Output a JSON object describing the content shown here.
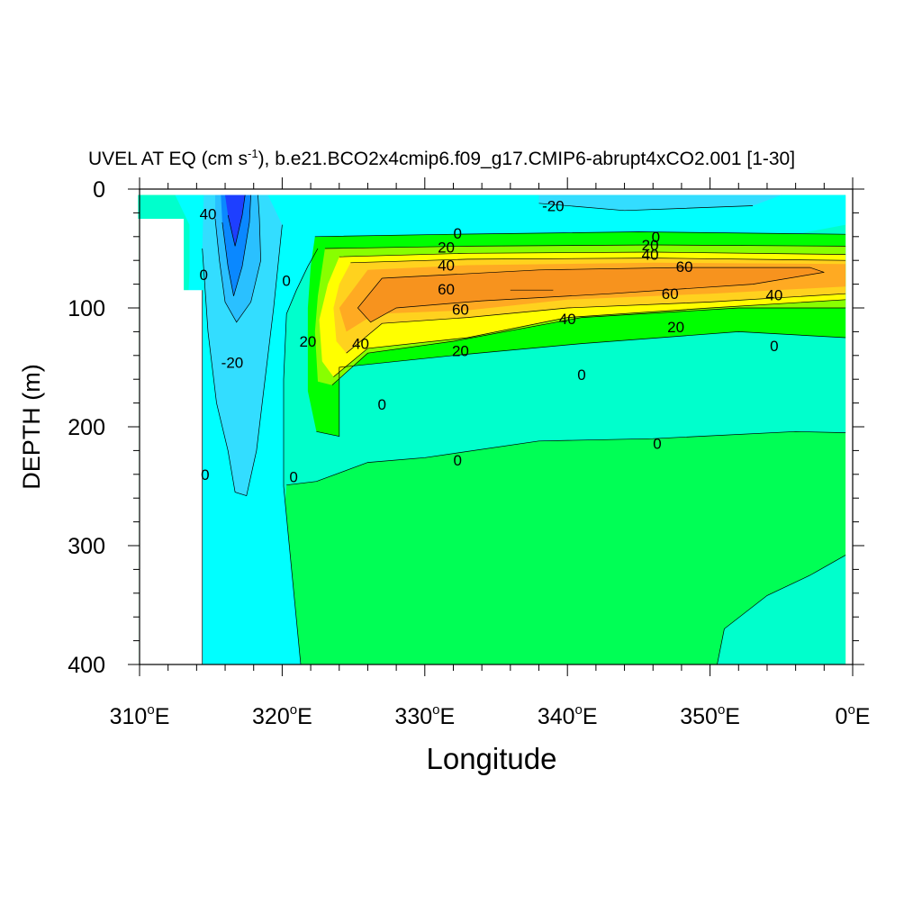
{
  "chart_data": {
    "type": "heatmap",
    "title": {
      "variable": "UVEL AT EQ",
      "units_prefix": "(cm s",
      "units_exponent": "-1",
      "units_suffix": "),",
      "case": "b.e21.BCO2x4cmip6.f09_g17.CMIP6-abrupt4xCO2.001 [1-30]"
    },
    "xlabel": "Longitude",
    "ylabel": "DEPTH (m)",
    "xlim": [
      310,
      360
    ],
    "ylim": [
      0,
      400
    ],
    "x_ticks": [
      {
        "value": 310,
        "num": "310",
        "suffix": "E"
      },
      {
        "value": 320,
        "num": "320",
        "suffix": "E"
      },
      {
        "value": 330,
        "num": "330",
        "suffix": "E"
      },
      {
        "value": 340,
        "num": "340",
        "suffix": "E"
      },
      {
        "value": 350,
        "num": "350",
        "suffix": "E"
      },
      {
        "value": 360,
        "num": "0",
        "suffix": "E"
      }
    ],
    "y_ticks": [
      {
        "value": 0,
        "label": "0"
      },
      {
        "value": 100,
        "label": "100"
      },
      {
        "value": 200,
        "label": "200"
      },
      {
        "value": 300,
        "label": "300"
      },
      {
        "value": 400,
        "label": "400"
      }
    ],
    "colors": {
      "cyan_light": "#00ffff",
      "mint": "#00ffcc",
      "aqua": "#33ddff",
      "sky": "#2ac0ff",
      "blue_mid": "#0a88ff",
      "blue_dark": "#1e3fff",
      "green": "#00ff55",
      "lime": "#00ff00",
      "yellow_green": "#88ff00",
      "yellow": "#ffff00",
      "gold": "#ffd21e",
      "orange_light": "#ffaa22",
      "orange": "#f7931e"
    },
    "contour_labels": [
      {
        "text": "-20",
        "x": 339.0,
        "y": 14
      },
      {
        "text": "40",
        "x": 314.8,
        "y": 21
      },
      {
        "text": "0",
        "x": 314.5,
        "y": 72
      },
      {
        "text": "0",
        "x": 320.3,
        "y": 77
      },
      {
        "text": "20",
        "x": 321.8,
        "y": 128
      },
      {
        "text": "-20",
        "x": 316.5,
        "y": 146
      },
      {
        "text": "0",
        "x": 314.6,
        "y": 240
      },
      {
        "text": "0",
        "x": 320.8,
        "y": 242
      },
      {
        "text": "0",
        "x": 332.3,
        "y": 37
      },
      {
        "text": "20",
        "x": 331.5,
        "y": 49
      },
      {
        "text": "40",
        "x": 331.5,
        "y": 64
      },
      {
        "text": "60",
        "x": 331.5,
        "y": 84
      },
      {
        "text": "60",
        "x": 332.5,
        "y": 101
      },
      {
        "text": "40",
        "x": 325.5,
        "y": 130
      },
      {
        "text": "20",
        "x": 332.5,
        "y": 136
      },
      {
        "text": "0",
        "x": 327.0,
        "y": 181
      },
      {
        "text": "0",
        "x": 341.0,
        "y": 156
      },
      {
        "text": "40",
        "x": 340.0,
        "y": 109
      },
      {
        "text": "0",
        "x": 346.2,
        "y": 40
      },
      {
        "text": "20",
        "x": 345.8,
        "y": 47
      },
      {
        "text": "40",
        "x": 345.8,
        "y": 55
      },
      {
        "text": "60",
        "x": 348.2,
        "y": 65
      },
      {
        "text": "60",
        "x": 347.2,
        "y": 88
      },
      {
        "text": "20",
        "x": 347.6,
        "y": 116
      },
      {
        "text": "40",
        "x": 354.5,
        "y": 89
      },
      {
        "text": "0",
        "x": 354.5,
        "y": 132
      },
      {
        "text": "0",
        "x": 346.3,
        "y": 214
      },
      {
        "text": "0",
        "x": 332.3,
        "y": 228
      }
    ]
  }
}
